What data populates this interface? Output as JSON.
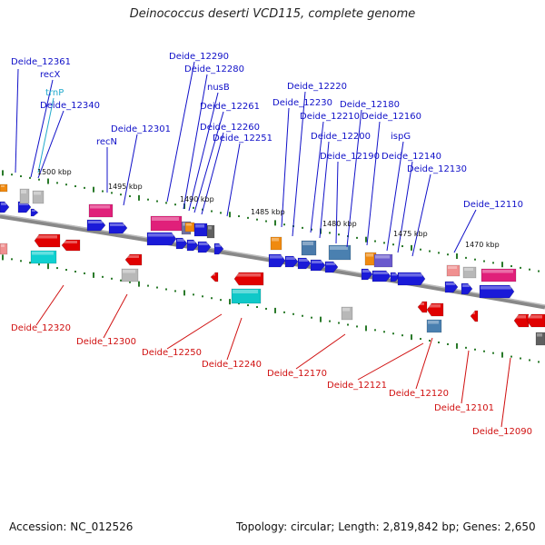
{
  "title": "Deinococcus deserti VCD115, complete genome",
  "accession": "Accession: NC_012526",
  "summary": "Topology: circular; Length: 2,819,842 bp; Genes: 2,650",
  "colors": {
    "forward_label": "#1010c8",
    "reverse_label": "#d01010",
    "trna_label": "#22aacc",
    "backbone": "#777777",
    "tick": "#2a7a2a",
    "cds_forward": "#1a1ad8",
    "cds_reverse": "#e00000"
  },
  "kbp_labels": [
    "1500 kbp",
    "1495 kbp",
    "1490 kbp",
    "1485 kbp",
    "1480 kbp",
    "1475 kbp",
    "1470 kbp"
  ],
  "forward_labels": [
    "Deide_12361",
    "recX",
    "trnP",
    "Deide_12340",
    "Deide_12301",
    "recN",
    "Deide_12290",
    "Deide_12280",
    "nusB",
    "Deide_12261",
    "Deide_12260",
    "Deide_12251",
    "Deide_12220",
    "Deide_12230",
    "Deide_12210",
    "Deide_12200",
    "Deide_12190",
    "Deide_12180",
    "Deide_12160",
    "ispG",
    "Deide_12140",
    "Deide_12130",
    "Deide_12110"
  ],
  "reverse_labels": [
    "Deide_12320",
    "Deide_12300",
    "Deide_12250",
    "Deide_12240",
    "Deide_12170",
    "Deide_12121",
    "Deide_12120",
    "Deide_12101",
    "Deide_12090"
  ]
}
